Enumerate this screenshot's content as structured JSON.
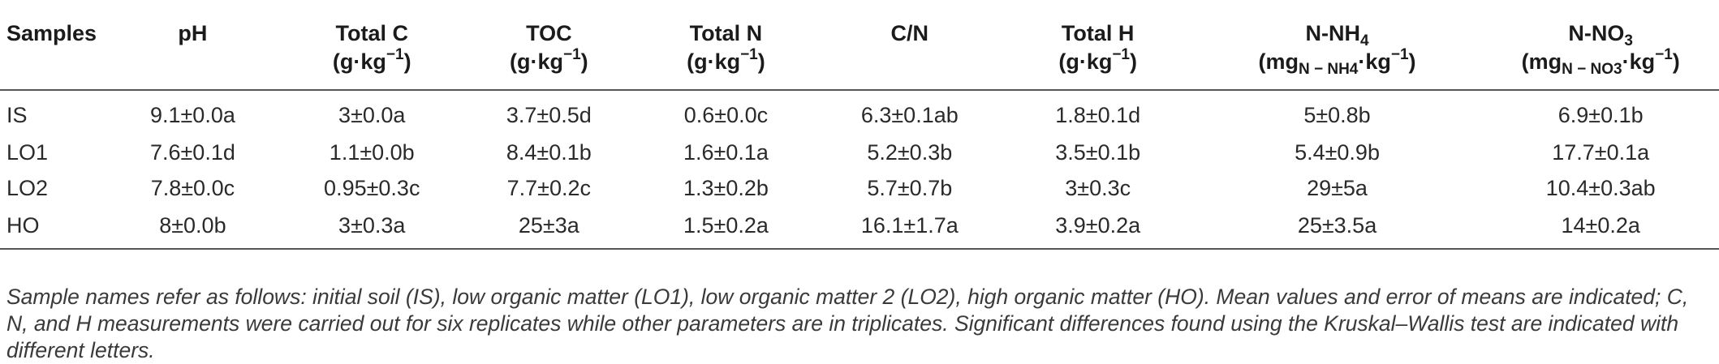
{
  "table": {
    "headers": {
      "samples": "Samples",
      "ph": "pH",
      "total_c": {
        "label": "Total C",
        "unit_pre": "(g·kg",
        "unit_sup": "−1",
        "unit_post": ")"
      },
      "toc": {
        "label": "TOC",
        "unit_pre": "(g·kg",
        "unit_sup": "−1",
        "unit_post": ")"
      },
      "total_n": {
        "label": "Total N",
        "unit_pre": "(g·kg",
        "unit_sup": "−1",
        "unit_post": ")"
      },
      "cn": "C/N",
      "total_h": {
        "label": "Total H",
        "unit_pre": "(g·kg",
        "unit_sup": "−1",
        "unit_post": ")"
      },
      "nh4": {
        "label_pre": "N-NH",
        "label_sub": "4",
        "unit_pre": "(mg",
        "unit_sub": "N − NH4",
        "unit_mid": "·kg",
        "unit_sup": "−1",
        "unit_post": ")"
      },
      "no3": {
        "label_pre": "N-NO",
        "label_sub": "3",
        "unit_pre": "(mg",
        "unit_sub": "N − NO3",
        "unit_mid": "·kg",
        "unit_sup": "−1",
        "unit_post": ")"
      }
    },
    "rows": [
      [
        "IS",
        "9.1±0.0a",
        "3±0.0a",
        "3.7±0.5d",
        "0.6±0.0c",
        "6.3±0.1ab",
        "1.8±0.1d",
        "5±0.8b",
        "6.9±0.1b"
      ],
      [
        "LO1",
        "7.6±0.1d",
        "1.1±0.0b",
        "8.4±0.1b",
        "1.6±0.1a",
        "5.2±0.3b",
        "3.5±0.1b",
        "5.4±0.9b",
        "17.7±0.1a"
      ],
      [
        "LO2",
        "7.8±0.0c",
        "0.95±0.3c",
        "7.7±0.2c",
        "1.3±0.2b",
        "5.7±0.7b",
        "3±0.3c",
        "29±5a",
        "10.4±0.3ab"
      ],
      [
        "HO",
        "8±0.0b",
        "3±0.3a",
        "25±3a",
        "1.5±0.2a",
        "16.1±1.7a",
        "3.9±0.2a",
        "25±3.5a",
        "14±0.2a"
      ]
    ]
  },
  "caption": "Sample names refer as follows: initial soil (IS), low organic matter (LO1), low organic matter 2 (LO2), high organic matter (HO). Mean values and error of means are indicated; C, N, and H measurements were carried out for six replicates while other parameters are in triplicates. Significant differences found using the Kruskal–Wallis test are indicated with different letters."
}
